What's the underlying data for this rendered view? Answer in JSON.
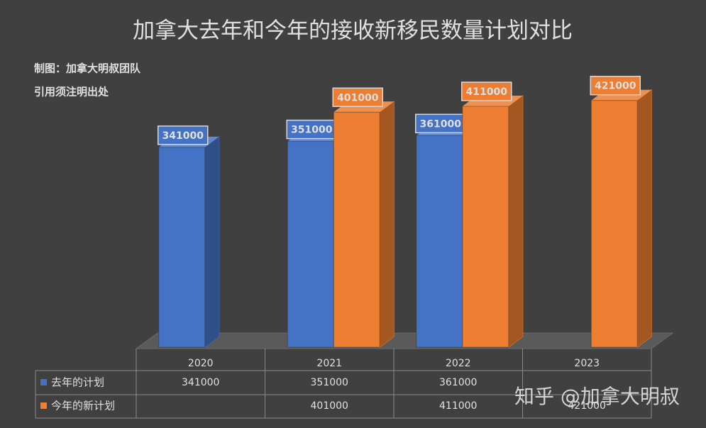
{
  "chart_data": {
    "type": "bar3d",
    "title": "加拿大去年和今年的接收新移民数量计划对比",
    "annotations": [
      "制图：加拿大明叔团队",
      "引用须注明出处"
    ],
    "watermark": "知乎 @加拿大明叔",
    "categories": [
      "2020",
      "2021",
      "2022",
      "2023"
    ],
    "series": [
      {
        "name": "去年的计划",
        "color": "#4472c4",
        "values": [
          341000,
          351000,
          361000,
          null
        ]
      },
      {
        "name": "今年的新计划",
        "color": "#ed7d31",
        "values": [
          null,
          401000,
          411000,
          421000
        ]
      }
    ],
    "ylim": [
      0,
      440000
    ]
  }
}
